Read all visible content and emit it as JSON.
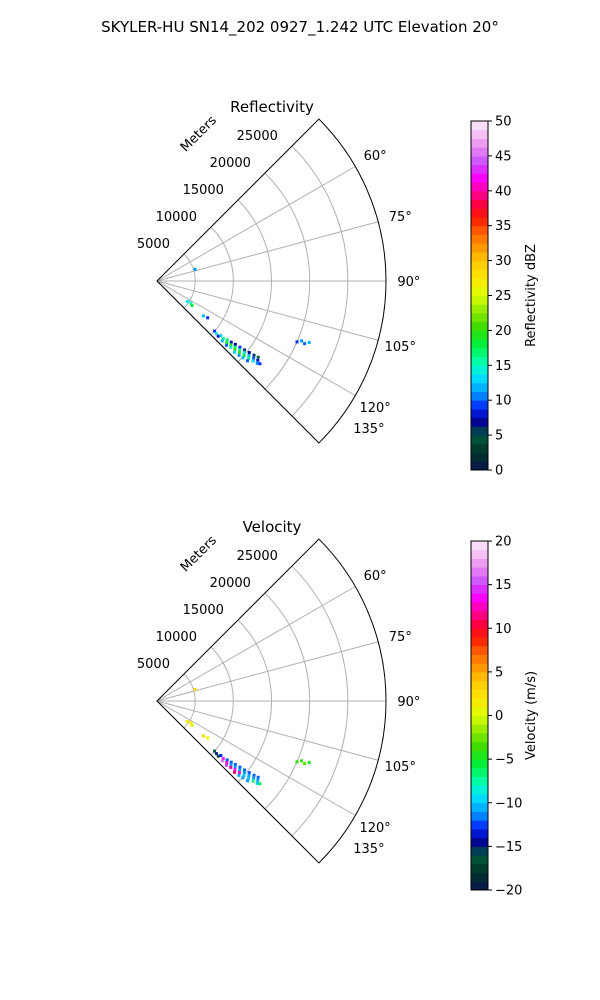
{
  "figure": {
    "title": "SKYLER-HU  SN14_202  0927_1.242 UTC Elevation 20°"
  },
  "chart_data": [
    {
      "type": "polar-sector",
      "title": "Reflectivity",
      "radial_label": "Meters",
      "radial_ticks": [
        5000,
        10000,
        15000,
        20000,
        25000
      ],
      "radial_tick_labels": [
        "5000",
        "10000",
        "15000",
        "20000",
        "25000"
      ],
      "angular_ticks": [
        60,
        75,
        90,
        105,
        120,
        135
      ],
      "angular_tick_labels": [
        "60°",
        "75°",
        "90°",
        "105°",
        "120°",
        "135°"
      ],
      "theta_range": [
        45,
        135
      ],
      "r_max": 30000,
      "grid": true,
      "colorbar": {
        "label": "Reflectivity dBZ",
        "range": [
          0,
          50
        ],
        "ticks": [
          0,
          5,
          10,
          15,
          20,
          25,
          30,
          35,
          40,
          45,
          50
        ],
        "tick_labels": [
          "0",
          "5",
          "10",
          "15",
          "20",
          "25",
          "30",
          "35",
          "40",
          "45",
          "50"
        ]
      },
      "points": [
        {
          "az": 131.0,
          "r": 10000,
          "v": 9
        },
        {
          "az": 131.5,
          "r": 10400,
          "v": 14
        },
        {
          "az": 132.0,
          "r": 10800,
          "v": 8
        },
        {
          "az": 130.5,
          "r": 11000,
          "v": 13
        },
        {
          "az": 131.0,
          "r": 11500,
          "v": 16
        },
        {
          "az": 132.5,
          "r": 11600,
          "v": 12
        },
        {
          "az": 130.0,
          "r": 12000,
          "v": 17
        },
        {
          "az": 131.5,
          "r": 12200,
          "v": 18
        },
        {
          "az": 132.8,
          "r": 12400,
          "v": 10
        },
        {
          "az": 129.5,
          "r": 12600,
          "v": 8
        },
        {
          "az": 130.8,
          "r": 12800,
          "v": 19
        },
        {
          "az": 132.0,
          "r": 13000,
          "v": 15
        },
        {
          "az": 129.0,
          "r": 13200,
          "v": 7
        },
        {
          "az": 130.2,
          "r": 13400,
          "v": 17
        },
        {
          "az": 131.4,
          "r": 13600,
          "v": 20
        },
        {
          "az": 132.6,
          "r": 13800,
          "v": 13
        },
        {
          "az": 128.6,
          "r": 13900,
          "v": 9
        },
        {
          "az": 129.8,
          "r": 14100,
          "v": 16
        },
        {
          "az": 131.0,
          "r": 14300,
          "v": 19
        },
        {
          "az": 132.2,
          "r": 14500,
          "v": 11
        },
        {
          "az": 128.2,
          "r": 14600,
          "v": 6
        },
        {
          "az": 129.4,
          "r": 14800,
          "v": 14
        },
        {
          "az": 130.6,
          "r": 15000,
          "v": 18
        },
        {
          "az": 131.8,
          "r": 15100,
          "v": 12
        },
        {
          "az": 127.8,
          "r": 15300,
          "v": 7
        },
        {
          "az": 129.0,
          "r": 15500,
          "v": 12
        },
        {
          "az": 130.2,
          "r": 15700,
          "v": 16
        },
        {
          "az": 131.4,
          "r": 15800,
          "v": 10
        },
        {
          "az": 127.4,
          "r": 16000,
          "v": 6
        },
        {
          "az": 128.6,
          "r": 16200,
          "v": 10
        },
        {
          "az": 129.8,
          "r": 16400,
          "v": 13
        },
        {
          "az": 128.2,
          "r": 16800,
          "v": 8
        },
        {
          "az": 129.4,
          "r": 17000,
          "v": 11
        },
        {
          "az": 127.0,
          "r": 16600,
          "v": 5
        },
        {
          "az": 128.8,
          "r": 17300,
          "v": 9
        },
        {
          "az": 124.0,
          "r": 4800,
          "v": 14
        },
        {
          "az": 123.0,
          "r": 5300,
          "v": 15
        },
        {
          "az": 125.0,
          "r": 5600,
          "v": 18
        },
        {
          "az": 127.0,
          "r": 7600,
          "v": 12
        },
        {
          "az": 126.0,
          "r": 8200,
          "v": 9
        },
        {
          "az": 112.5,
          "r": 20500,
          "v": 11
        },
        {
          "az": 113.0,
          "r": 21000,
          "v": 10
        },
        {
          "az": 112.0,
          "r": 21500,
          "v": 12
        },
        {
          "az": 113.5,
          "r": 20000,
          "v": 9
        },
        {
          "az": 73.0,
          "r": 5200,
          "v": 11
        }
      ]
    },
    {
      "type": "polar-sector",
      "title": "Velocity",
      "radial_label": "Meters",
      "radial_ticks": [
        5000,
        10000,
        15000,
        20000,
        25000
      ],
      "radial_tick_labels": [
        "5000",
        "10000",
        "15000",
        "20000",
        "25000"
      ],
      "angular_ticks": [
        60,
        75,
        90,
        105,
        120,
        135
      ],
      "angular_tick_labels": [
        "60°",
        "75°",
        "90°",
        "105°",
        "120°",
        "135°"
      ],
      "theta_range": [
        45,
        135
      ],
      "r_max": 30000,
      "grid": true,
      "colorbar": {
        "label": "Velocity (m/s)",
        "range": [
          -20,
          20
        ],
        "ticks": [
          -20,
          -15,
          -10,
          -5,
          0,
          5,
          10,
          15,
          20
        ],
        "tick_labels": [
          "−20",
          "−15",
          "−10",
          "−5",
          "0",
          "5",
          "10",
          "15",
          "20"
        ]
      },
      "points": [
        {
          "az": 131.0,
          "r": 10000,
          "v": -16
        },
        {
          "az": 131.5,
          "r": 10400,
          "v": -15
        },
        {
          "az": 132.0,
          "r": 10800,
          "v": -17
        },
        {
          "az": 130.5,
          "r": 11000,
          "v": -13
        },
        {
          "az": 131.0,
          "r": 11500,
          "v": 14
        },
        {
          "az": 132.5,
          "r": 11600,
          "v": 16
        },
        {
          "az": 130.0,
          "r": 12000,
          "v": -12
        },
        {
          "az": 131.5,
          "r": 12200,
          "v": 13
        },
        {
          "az": 132.8,
          "r": 12400,
          "v": 15
        },
        {
          "az": 129.5,
          "r": 12600,
          "v": -12
        },
        {
          "az": 130.8,
          "r": 12800,
          "v": -11
        },
        {
          "az": 132.0,
          "r": 13000,
          "v": 12
        },
        {
          "az": 129.0,
          "r": 13200,
          "v": -12
        },
        {
          "az": 130.2,
          "r": 13400,
          "v": -11
        },
        {
          "az": 131.4,
          "r": 13600,
          "v": 14
        },
        {
          "az": 132.6,
          "r": 13800,
          "v": 11
        },
        {
          "az": 128.6,
          "r": 13900,
          "v": -12
        },
        {
          "az": 129.8,
          "r": 14100,
          "v": -11
        },
        {
          "az": 131.0,
          "r": 14300,
          "v": 13
        },
        {
          "az": 132.2,
          "r": 14500,
          "v": -11
        },
        {
          "az": 128.2,
          "r": 14600,
          "v": -12
        },
        {
          "az": 129.4,
          "r": 14800,
          "v": -11
        },
        {
          "az": 130.6,
          "r": 15000,
          "v": -10
        },
        {
          "az": 131.8,
          "r": 15100,
          "v": -11
        },
        {
          "az": 127.8,
          "r": 15300,
          "v": -12
        },
        {
          "az": 129.0,
          "r": 15500,
          "v": -11
        },
        {
          "az": 130.2,
          "r": 15700,
          "v": -10
        },
        {
          "az": 131.4,
          "r": 15800,
          "v": -11
        },
        {
          "az": 127.4,
          "r": 16000,
          "v": -12
        },
        {
          "az": 128.6,
          "r": 16200,
          "v": -11
        },
        {
          "az": 129.8,
          "r": 16400,
          "v": -7
        },
        {
          "az": 128.2,
          "r": 16800,
          "v": -11
        },
        {
          "az": 129.4,
          "r": 17000,
          "v": -10
        },
        {
          "az": 127.0,
          "r": 16600,
          "v": -12
        },
        {
          "az": 128.8,
          "r": 17300,
          "v": -6
        },
        {
          "az": 124.0,
          "r": 4800,
          "v": 1
        },
        {
          "az": 123.0,
          "r": 5300,
          "v": 2
        },
        {
          "az": 125.0,
          "r": 5600,
          "v": 0
        },
        {
          "az": 127.0,
          "r": 7600,
          "v": 3
        },
        {
          "az": 126.0,
          "r": 8200,
          "v": 1
        },
        {
          "az": 112.5,
          "r": 20500,
          "v": -4
        },
        {
          "az": 113.0,
          "r": 21000,
          "v": -3
        },
        {
          "az": 112.0,
          "r": 21500,
          "v": -5
        },
        {
          "az": 113.5,
          "r": 20000,
          "v": -4
        },
        {
          "az": 73.0,
          "r": 5200,
          "v": 3
        }
      ]
    }
  ],
  "colors": {
    "axis": "#000000",
    "grid": "#b0b0b0",
    "background": "#ffffff"
  }
}
